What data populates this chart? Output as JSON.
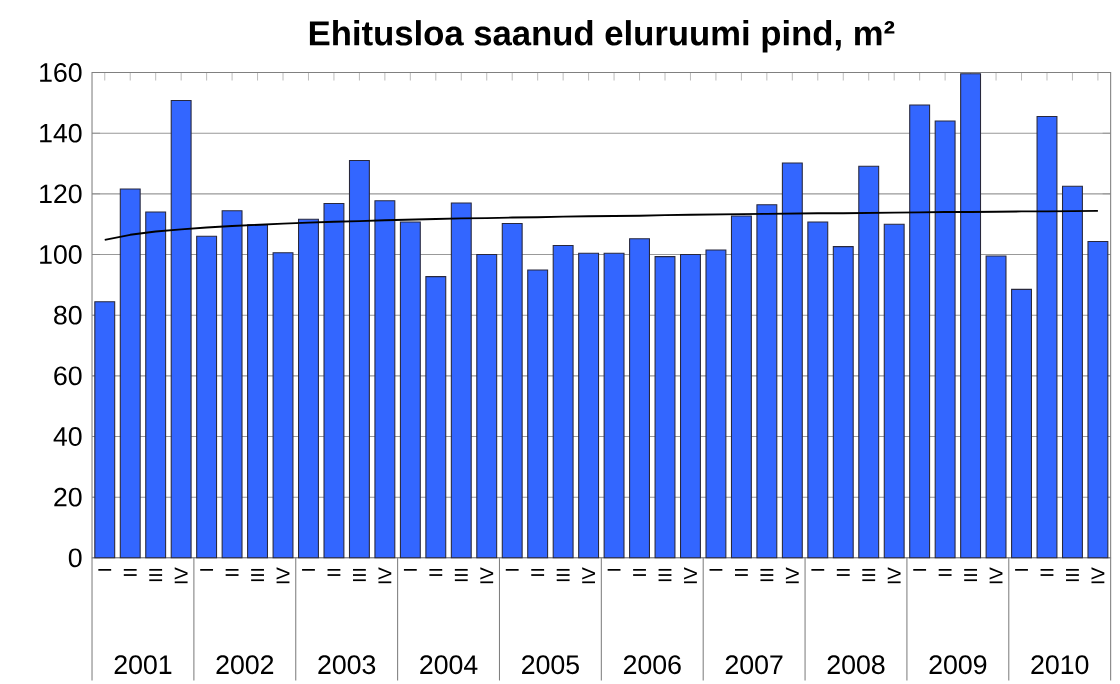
{
  "chart_data": {
    "type": "bar",
    "title": "Ehitusloa saanud eluruumi pind, m²",
    "categories": [
      "I",
      "II",
      "III",
      "IV",
      "I",
      "II",
      "III",
      "IV",
      "I",
      "II",
      "III",
      "IV",
      "I",
      "II",
      "III",
      "IV",
      "I",
      "II",
      "III",
      "IV",
      "I",
      "II",
      "III",
      "IV",
      "I",
      "II",
      "III",
      "IV",
      "I",
      "II",
      "III",
      "IV",
      "I",
      "II",
      "III",
      "IV",
      "I",
      "II",
      "III",
      "IV"
    ],
    "series": [
      {
        "color": "#3366ff",
        "values": [
          84.4,
          121.6,
          114,
          150.8,
          106,
          114.4,
          109.8,
          100.6,
          111.6,
          116.8,
          131,
          117.7,
          110.7,
          92.7,
          117,
          100,
          110.2,
          94.9,
          103,
          100.4,
          100.4,
          105.2,
          99.3,
          100,
          101.5,
          112.7,
          116.4,
          130.2,
          110.7,
          102.6,
          129.1,
          110,
          149.3,
          144,
          159.6,
          99.5,
          88.5,
          145.5,
          122.5,
          104.3
        ]
      },
      {
        "type": "line",
        "color": "#000000",
        "values": [
          104.8,
          106.5,
          107.6,
          108.3,
          108.9,
          109.4,
          109.8,
          110.2,
          110.5,
          110.8,
          111.0,
          111.3,
          111.5,
          111.7,
          111.9,
          112.0,
          112.2,
          112.3,
          112.5,
          112.6,
          112.7,
          112.8,
          113.0,
          113.1,
          113.2,
          113.3,
          113.4,
          113.5,
          113.6,
          113.6,
          113.7,
          113.8,
          113.9,
          114.0,
          114.0,
          114.1,
          114.2,
          114.2,
          114.3,
          114.4
        ]
      }
    ],
    "annotations": [
      "2001",
      "2002",
      "2003",
      "2004",
      "2005",
      "2006",
      "2007",
      "2008",
      "2009",
      "2010"
    ],
    "ylim": [
      0,
      160
    ],
    "yticks": [
      0,
      20,
      40,
      60,
      80,
      100,
      120,
      140,
      160
    ],
    "grid": "y"
  }
}
